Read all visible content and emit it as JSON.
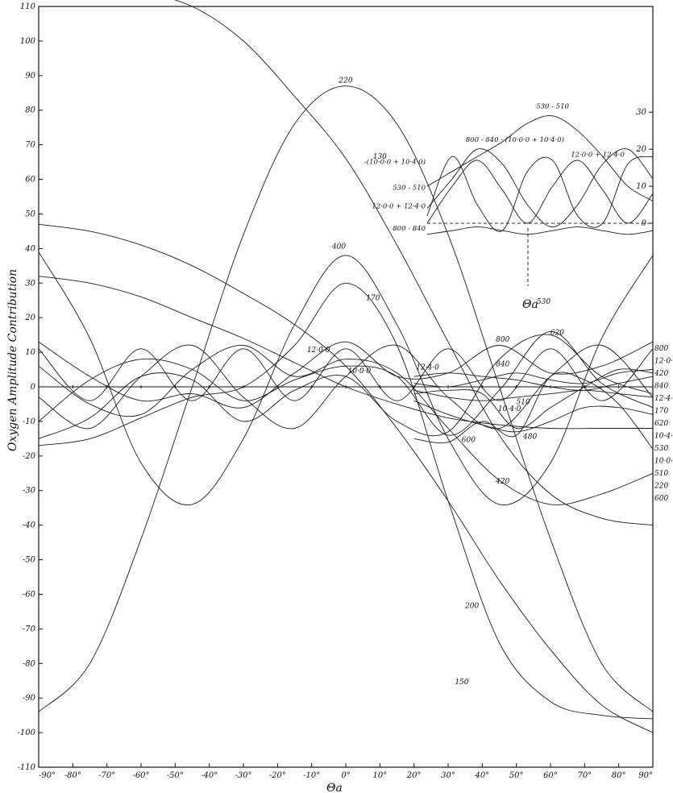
{
  "chart_data": {
    "type": "line",
    "title": "",
    "xlabel": "Θa",
    "ylabel": "Oxygen  Amplitude  Contribution",
    "xlim": [
      -90,
      90
    ],
    "ylim": [
      -110,
      110
    ],
    "x_ticks": [
      -90,
      -80,
      -70,
      -60,
      -50,
      -40,
      -30,
      -20,
      -10,
      0,
      10,
      20,
      30,
      40,
      50,
      60,
      70,
      80,
      90
    ],
    "x_tick_labels": [
      "-90°",
      "-80°",
      "-70°",
      "-60°",
      "-50°",
      "-40°",
      "-30°",
      "-20°",
      "-10°",
      "0°",
      "10°",
      "20°",
      "30°",
      "40°",
      "50°",
      "60°",
      "70°",
      "80°",
      "90°"
    ],
    "y_ticks": [
      -110,
      -100,
      -90,
      -80,
      -70,
      -60,
      -50,
      -40,
      -30,
      -20,
      -10,
      0,
      10,
      20,
      30,
      40,
      50,
      60,
      70,
      80,
      90,
      100,
      110
    ],
    "y_tick_labels": [
      "-110",
      "-100",
      "-90",
      "-80",
      "-70",
      "-60",
      "-50",
      "-40",
      "-30",
      "-20",
      "-10",
      "0",
      "10",
      "20",
      "30",
      "40",
      "50",
      "60",
      "70",
      "80",
      "90",
      "100",
      "110"
    ],
    "grid": false,
    "series": [
      {
        "name": "150",
        "x": [
          -90,
          -75,
          -60,
          -45,
          -30,
          -15,
          0,
          15,
          30,
          45,
          60,
          75,
          90
        ],
        "y": [
          47,
          45,
          41,
          35,
          27,
          18,
          6,
          -12,
          -33,
          -56,
          -76,
          -92,
          -100
        ],
        "label_at": [
          34,
          -86
        ]
      },
      {
        "name": "220",
        "x": [
          -90,
          -75,
          -60,
          -45,
          -30,
          -15,
          0,
          15,
          30,
          45,
          60,
          75,
          90
        ],
        "y": [
          -94,
          -80,
          -44,
          0,
          44,
          76,
          87,
          76,
          44,
          0,
          -44,
          -80,
          -94
        ],
        "label_at": [
          0,
          88
        ]
      },
      {
        "name": "130",
        "x": [
          -62,
          -45,
          -30,
          -15,
          0,
          15,
          30,
          45,
          60,
          75,
          90
        ],
        "y": [
          115,
          110,
          100,
          84,
          66,
          41,
          13,
          -14,
          -31,
          -38,
          -40
        ],
        "label_at": [
          10,
          66
        ]
      },
      {
        "name": "400",
        "x": [
          -90,
          -75,
          -60,
          -45,
          -30,
          -15,
          0,
          15,
          30,
          45,
          60,
          75,
          90
        ],
        "y": [
          39,
          14,
          -22,
          -34,
          -15,
          18,
          38,
          18,
          -15,
          -34,
          -22,
          14,
          38
        ],
        "label_at": [
          -2,
          40
        ]
      },
      {
        "name": "200",
        "x": [
          -90,
          -75,
          -60,
          -45,
          -30,
          -15,
          0,
          15,
          30,
          45,
          60,
          75,
          90
        ],
        "y": [
          -17,
          -15,
          -9,
          -3,
          0,
          12,
          30,
          12,
          -33,
          -74,
          -91,
          -95,
          -96
        ],
        "label_at": [
          37,
          -64
        ]
      },
      {
        "name": "170",
        "x": [
          -90,
          -75,
          -60,
          -45,
          -30,
          -15,
          0,
          15,
          30,
          45,
          60,
          75,
          90
        ],
        "y": [
          32,
          30,
          26,
          20,
          14,
          7,
          0,
          -5,
          -9,
          -11,
          -12,
          -12,
          -12
        ],
        "label_at": [
          8,
          25
        ]
      },
      {
        "name": "420",
        "x": [
          -90,
          -75,
          -60,
          -45,
          -30,
          -15,
          0,
          15,
          30,
          45,
          60,
          75,
          90
        ],
        "y": [
          6,
          -5,
          -8,
          5,
          12,
          3,
          8,
          4,
          -12,
          -27,
          -34,
          -31,
          -25
        ],
        "label_at": [
          46,
          -28
        ]
      },
      {
        "name": "800",
        "x": [
          -90,
          -75,
          -60,
          -45,
          -30,
          -15,
          0,
          15,
          30,
          45,
          60,
          75,
          90
        ],
        "y": [
          13,
          3,
          -4,
          -2,
          -6,
          4,
          13,
          3,
          4,
          12,
          4,
          6,
          13
        ],
        "label_at": [
          46,
          13
        ]
      },
      {
        "name": "530",
        "x": [
          -90,
          -75,
          -60,
          -45,
          -30,
          -15,
          0,
          15,
          30,
          45,
          60,
          75,
          90
        ],
        "y": [
          -10,
          2,
          8,
          5,
          -4,
          2,
          6,
          3,
          -14,
          -1,
          16,
          1,
          -6
        ],
        "label_at": [
          58,
          24
        ]
      },
      {
        "name": "620",
        "x": [
          -90,
          -75,
          -60,
          -45,
          -30,
          -15,
          0,
          15,
          30,
          45,
          60,
          75,
          90
        ],
        "y": [
          -15,
          -9,
          3,
          2,
          -10,
          -1,
          3,
          -10,
          -13,
          8,
          15,
          3,
          -2
        ],
        "label_at": [
          62,
          15
        ]
      },
      {
        "name": "12·0·0",
        "x": [
          -90,
          -75,
          -60,
          -45,
          -30,
          -15,
          0,
          15,
          30,
          45,
          60,
          75,
          90
        ],
        "y": [
          11,
          -4,
          11,
          -4,
          11,
          -4,
          11,
          -4,
          11,
          -4,
          11,
          -4,
          11
        ],
        "label_at": [
          -8,
          10
        ]
      },
      {
        "name": "10·0·0",
        "x": [
          -90,
          -75,
          -60,
          -45,
          -30,
          -15,
          0,
          15,
          30,
          45,
          60,
          75,
          90
        ],
        "y": [
          -3,
          -12,
          3,
          12,
          -3,
          -12,
          3,
          12,
          -3,
          -12,
          3,
          12,
          -3
        ],
        "label_at": [
          4,
          4
        ]
      },
      {
        "name": "10·4·0",
        "x": [
          20,
          30,
          40,
          50,
          60,
          70,
          80,
          90
        ],
        "y": [
          -2,
          -1,
          -2,
          -12,
          -6,
          0,
          5,
          4
        ],
        "label_at": [
          48,
          -7
        ]
      },
      {
        "name": "12·4·0",
        "x": [
          20,
          30,
          40,
          50,
          60,
          70,
          80,
          90
        ],
        "y": [
          3,
          4,
          3,
          2,
          0,
          -1,
          1,
          3
        ],
        "label_at": [
          24,
          5
        ]
      },
      {
        "name": "840",
        "x": [
          20,
          30,
          40,
          50,
          60,
          70,
          80,
          90
        ],
        "y": [
          1,
          0,
          2,
          4,
          2,
          1,
          4,
          5
        ],
        "label_at": [
          46,
          6
        ]
      },
      {
        "name": "600",
        "x": [
          20,
          30,
          40,
          50,
          60,
          70,
          80,
          90
        ],
        "y": [
          -15,
          -16,
          -10,
          -14,
          3,
          2,
          -5,
          -18
        ],
        "label_at": [
          36,
          -16
        ]
      },
      {
        "name": "510",
        "x": [
          20,
          30,
          40,
          50,
          60,
          70,
          80,
          90
        ],
        "y": [
          -1,
          -3,
          -4,
          -3,
          -2,
          -1,
          -2,
          -3
        ],
        "label_at": [
          52,
          -5
        ]
      },
      {
        "name": "480",
        "x": [
          20,
          30,
          40,
          50,
          60,
          70,
          80,
          90
        ],
        "y": [
          -4,
          -8,
          -11,
          -13,
          -10,
          -6,
          -6,
          -8
        ],
        "label_at": [
          54,
          -15
        ]
      }
    ],
    "right_labels": [
      "800",
      "12·0·0",
      "420",
      "840",
      "12·4·0",
      "170",
      "620",
      "10·4·0",
      "530",
      "10·0·0",
      "510",
      "220",
      "600"
    ],
    "inset": {
      "xlim": [
        0,
        90
      ],
      "ylim": [
        -5,
        32
      ],
      "y_tick_labels": [
        "30",
        "20",
        "10",
        "0"
      ],
      "axis_label": "Θa",
      "series": [
        {
          "name": "530 - 510",
          "y": [
            10,
            14,
            18,
            22,
            27,
            29,
            25,
            18,
            10,
            6
          ]
        },
        {
          "name": "800 - 840 - (10·0·0 + 10·4·0)",
          "y": [
            4,
            12,
            20,
            16,
            5,
            -1,
            5,
            16,
            20,
            12
          ]
        },
        {
          "name": "12·0·0 + 12·4·0",
          "y": [
            0,
            10,
            17,
            9,
            0,
            10,
            17,
            9,
            0,
            8
          ]
        },
        {
          "name": "-(10·0·0 + 10·4·0)",
          "y": [
            2,
            18,
            5,
            -2,
            14,
            17,
            2,
            0,
            16,
            18
          ]
        },
        {
          "name": "800 - 840",
          "y": [
            -3,
            -2,
            -1,
            -2,
            -3,
            -2,
            -1,
            -2,
            -3,
            -2
          ]
        }
      ],
      "labels_left": [
        "-(10·0·0 + 10·4·0)",
        "530 - 510",
        "12·0·0 + 12·4·0",
        "800 - 840"
      ]
    }
  }
}
